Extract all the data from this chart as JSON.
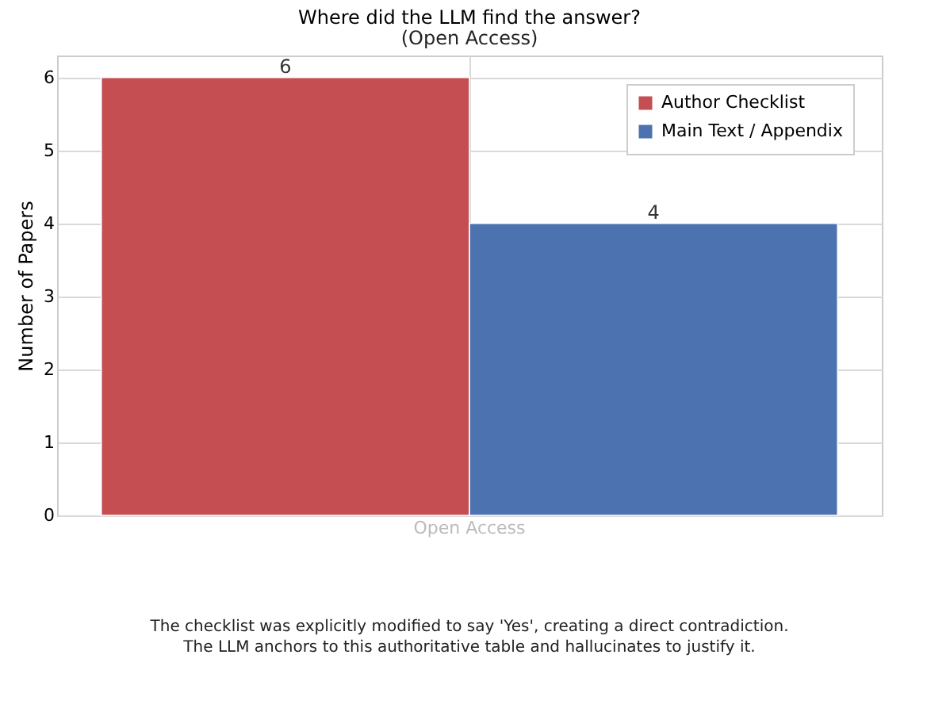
{
  "chart_data": {
    "type": "bar",
    "title": "Where did the LLM find the answer?",
    "subtitle": "(Open Access)",
    "ylabel": "Number of Papers",
    "categories": [
      "Open Access"
    ],
    "series": [
      {
        "name": "Author Checklist",
        "color": "#c44e52",
        "values": [
          6
        ]
      },
      {
        "name": "Main Text / Appendix",
        "color": "#4c72b0",
        "values": [
          4
        ]
      }
    ],
    "ylim": [
      0,
      6.3
    ],
    "yticks": [
      0,
      1,
      2,
      3,
      4,
      5,
      6
    ],
    "grid": true,
    "legend": "top right",
    "data_labels": true,
    "annotations": [
      "The checklist was explicitly modified to say 'Yes', creating a direct contradiction.",
      "The LLM anchors to this authoritative table and hallucinates to justify it."
    ]
  }
}
